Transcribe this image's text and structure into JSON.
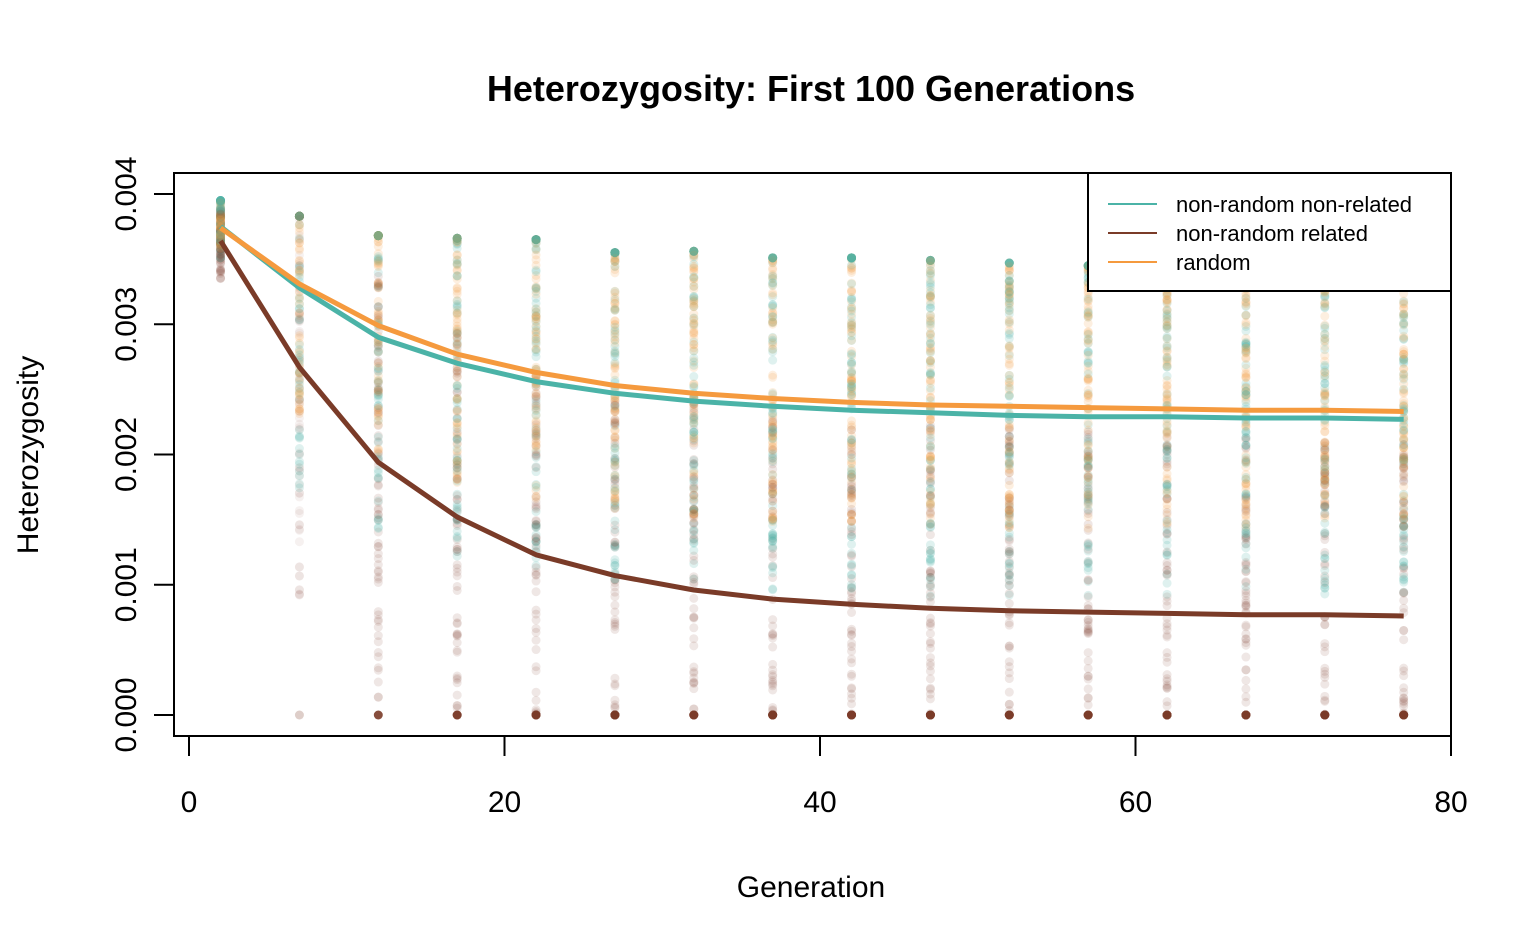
{
  "chart_data": {
    "type": "line",
    "title": "Heterozygosity: First 100 Generations",
    "xlabel": "Generation",
    "ylabel": "Heterozygosity",
    "xlim": [
      0,
      80
    ],
    "ylim": [
      0,
      0.004
    ],
    "x_ticks": [
      0,
      20,
      40,
      60,
      80
    ],
    "x_tick_labels": [
      "0",
      "20",
      "40",
      "60",
      "80"
    ],
    "y_ticks": [
      0,
      0.001,
      0.002,
      0.003,
      0.004
    ],
    "y_tick_labels": [
      "0.000",
      "0.001",
      "0.002",
      "0.003",
      "0.004"
    ],
    "grid": false,
    "legend_position": "top-right",
    "x": [
      2,
      7,
      12,
      17,
      22,
      27,
      32,
      37,
      42,
      47,
      52,
      57,
      62,
      67,
      72,
      77
    ],
    "series": [
      {
        "name": "non-random non-related",
        "color": "#4bb3a7",
        "values": [
          0.00375,
          0.00328,
          0.0029,
          0.0027,
          0.00256,
          0.00247,
          0.00241,
          0.00237,
          0.00234,
          0.00232,
          0.0023,
          0.00229,
          0.00229,
          0.00228,
          0.00228,
          0.00227
        ]
      },
      {
        "name": "non-random related",
        "color": "#7a3b28",
        "values": [
          0.00364,
          0.00267,
          0.00194,
          0.00152,
          0.00123,
          0.00107,
          0.00096,
          0.00089,
          0.00085,
          0.00082,
          0.0008,
          0.00079,
          0.00078,
          0.00077,
          0.00077,
          0.00076
        ]
      },
      {
        "name": "random",
        "color": "#f59a3e",
        "values": [
          0.00374,
          0.00331,
          0.00299,
          0.00277,
          0.00263,
          0.00253,
          0.00247,
          0.00243,
          0.0024,
          0.00238,
          0.00237,
          0.00236,
          0.00235,
          0.00234,
          0.00234,
          0.00233
        ]
      }
    ],
    "point_clouds": [
      {
        "x": 2,
        "min": 0.00335,
        "max": 0.00395
      },
      {
        "x": 7,
        "min": 0.0,
        "max": 0.00383
      },
      {
        "x": 12,
        "min": 0.0,
        "max": 0.00368
      },
      {
        "x": 17,
        "min": 0.0,
        "max": 0.00366
      },
      {
        "x": 22,
        "min": 0.0,
        "max": 0.00365
      },
      {
        "x": 27,
        "min": 0.0,
        "max": 0.00355
      },
      {
        "x": 32,
        "min": 0.0,
        "max": 0.00356
      },
      {
        "x": 37,
        "min": 0.0,
        "max": 0.00351
      },
      {
        "x": 42,
        "min": 0.0,
        "max": 0.00351
      },
      {
        "x": 47,
        "min": 0.0,
        "max": 0.00349
      },
      {
        "x": 52,
        "min": 0.0,
        "max": 0.00347
      },
      {
        "x": 57,
        "min": 0.0,
        "max": 0.00345
      },
      {
        "x": 62,
        "min": 0.0,
        "max": 0.0034
      },
      {
        "x": 67,
        "min": 0.0,
        "max": 0.00335
      },
      {
        "x": 72,
        "min": 0.0,
        "max": 0.00335
      },
      {
        "x": 77,
        "min": 0.0,
        "max": 0.0033
      }
    ]
  }
}
